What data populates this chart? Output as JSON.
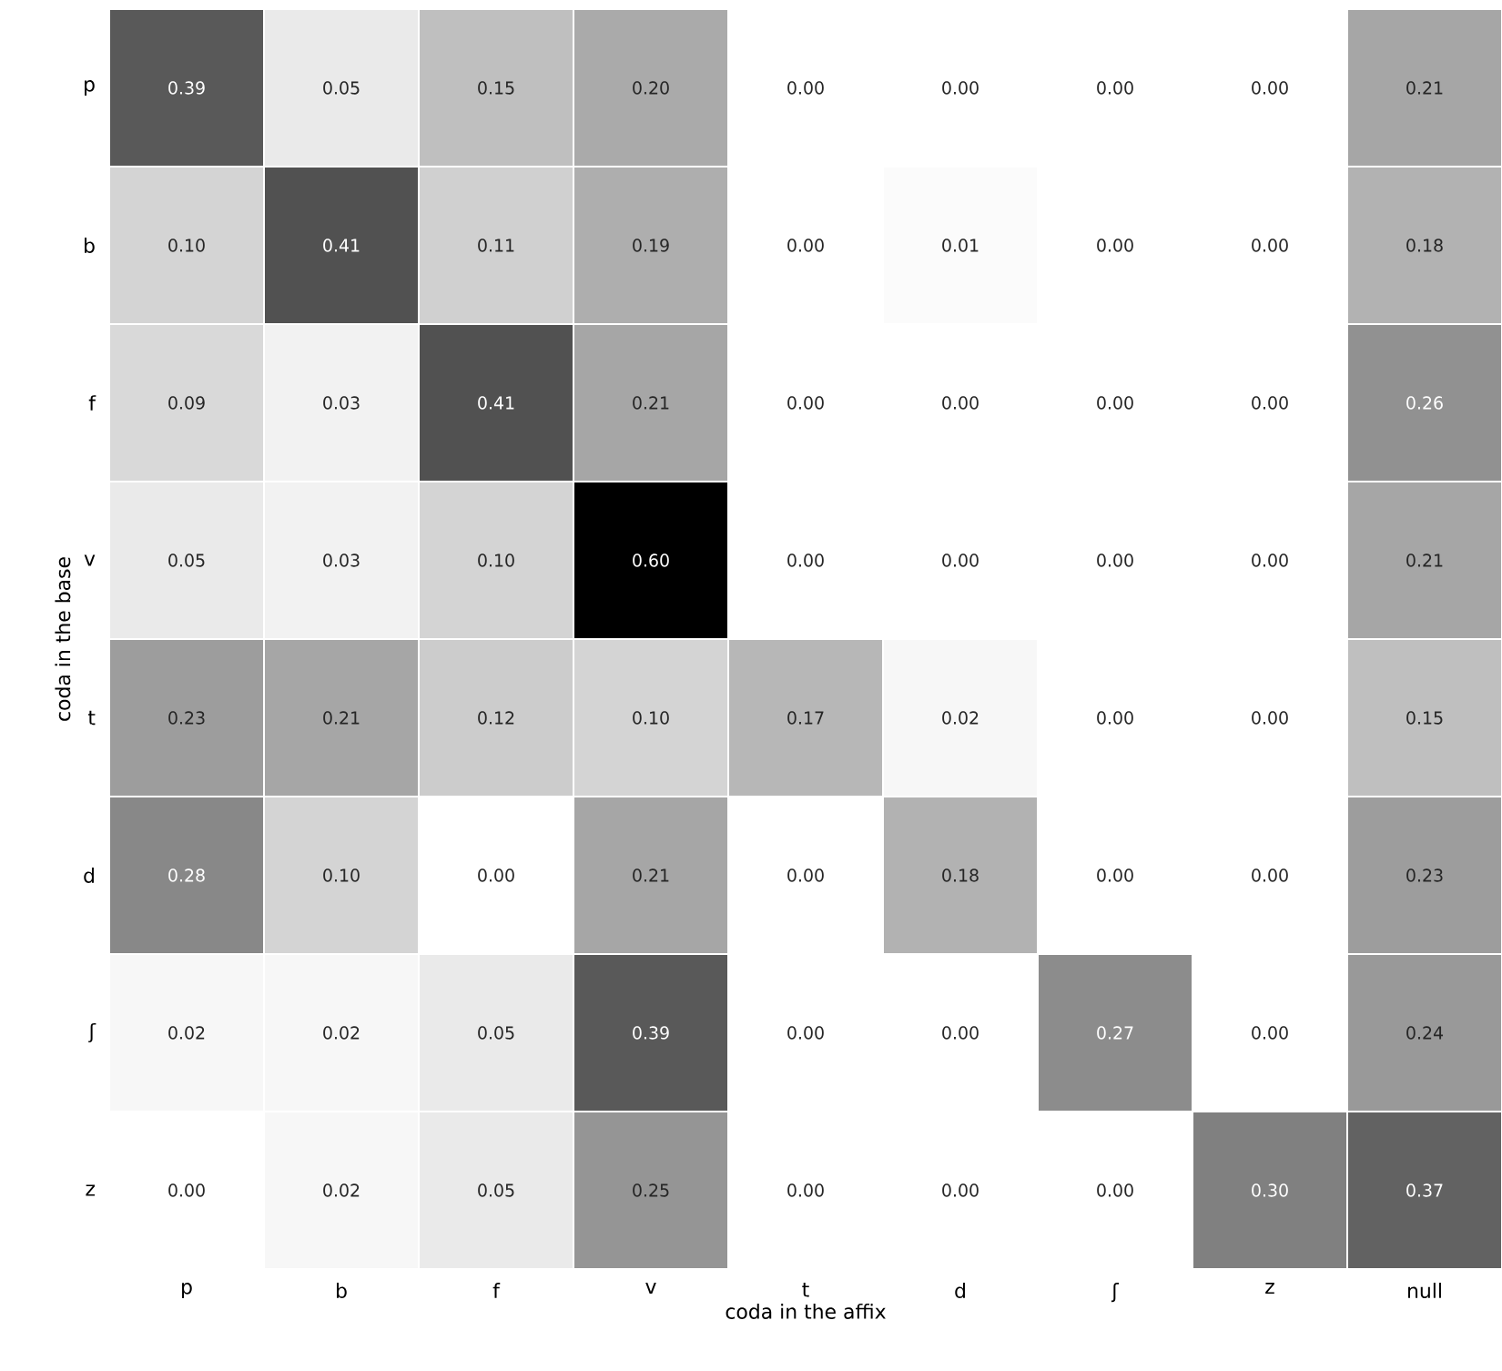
{
  "chart_data": {
    "type": "heatmap",
    "xlabel": "coda in the affix",
    "ylabel": "coda in the base",
    "categories": [
      "p",
      "b",
      "f",
      "v",
      "t",
      "d",
      "ʃ",
      "z",
      "null"
    ],
    "y_categories": [
      "p",
      "b",
      "f",
      "v",
      "t",
      "d",
      "ʃ",
      "z"
    ],
    "cells": [
      [
        0.39,
        0.05,
        0.15,
        0.2,
        0.0,
        0.0,
        0.0,
        0.0,
        0.21
      ],
      [
        0.1,
        0.41,
        0.11,
        0.19,
        0.0,
        0.01,
        0.0,
        0.0,
        0.18
      ],
      [
        0.09,
        0.03,
        0.41,
        0.21,
        0.0,
        0.0,
        0.0,
        0.0,
        0.26
      ],
      [
        0.05,
        0.03,
        0.1,
        0.6,
        0.0,
        0.0,
        0.0,
        0.0,
        0.21
      ],
      [
        0.23,
        0.21,
        0.12,
        0.1,
        0.17,
        0.02,
        0.0,
        0.0,
        0.15
      ],
      [
        0.28,
        0.1,
        0.0,
        0.21,
        0.0,
        0.18,
        0.0,
        0.0,
        0.23
      ],
      [
        0.02,
        0.02,
        0.05,
        0.39,
        0.0,
        0.0,
        0.27,
        0.0,
        0.24
      ],
      [
        0.0,
        0.02,
        0.05,
        0.25,
        0.0,
        0.0,
        0.0,
        0.3,
        0.37
      ]
    ],
    "cell_labels": [
      [
        "0.39",
        "0.05",
        "0.15",
        "0.20",
        "0.00",
        "0.00",
        "0.00",
        "0.00",
        "0.21"
      ],
      [
        "0.10",
        "0.41",
        "0.11",
        "0.19",
        "0.00",
        "0.01",
        "0.00",
        "0.00",
        "0.18"
      ],
      [
        "0.09",
        "0.03",
        "0.41",
        "0.21",
        "0.00",
        "0.00",
        "0.00",
        "0.00",
        "0.26"
      ],
      [
        "0.05",
        "0.03",
        "0.10",
        "0.60",
        "0.00",
        "0.00",
        "0.00",
        "0.00",
        "0.21"
      ],
      [
        "0.23",
        "0.21",
        "0.12",
        "0.10",
        "0.17",
        "0.02",
        "0.00",
        "0.00",
        "0.15"
      ],
      [
        "0.28",
        "0.10",
        "0.00",
        "0.21",
        "0.00",
        "0.18",
        "0.00",
        "0.00",
        "0.23"
      ],
      [
        "0.02",
        "0.02",
        "0.05",
        "0.39",
        "0.00",
        "0.00",
        "0.27",
        "0.00",
        "0.24"
      ],
      [
        "0.00",
        "0.02",
        "0.05",
        "0.25",
        "0.00",
        "0.00",
        "0.00",
        "0.30",
        "0.37"
      ]
    ]
  }
}
